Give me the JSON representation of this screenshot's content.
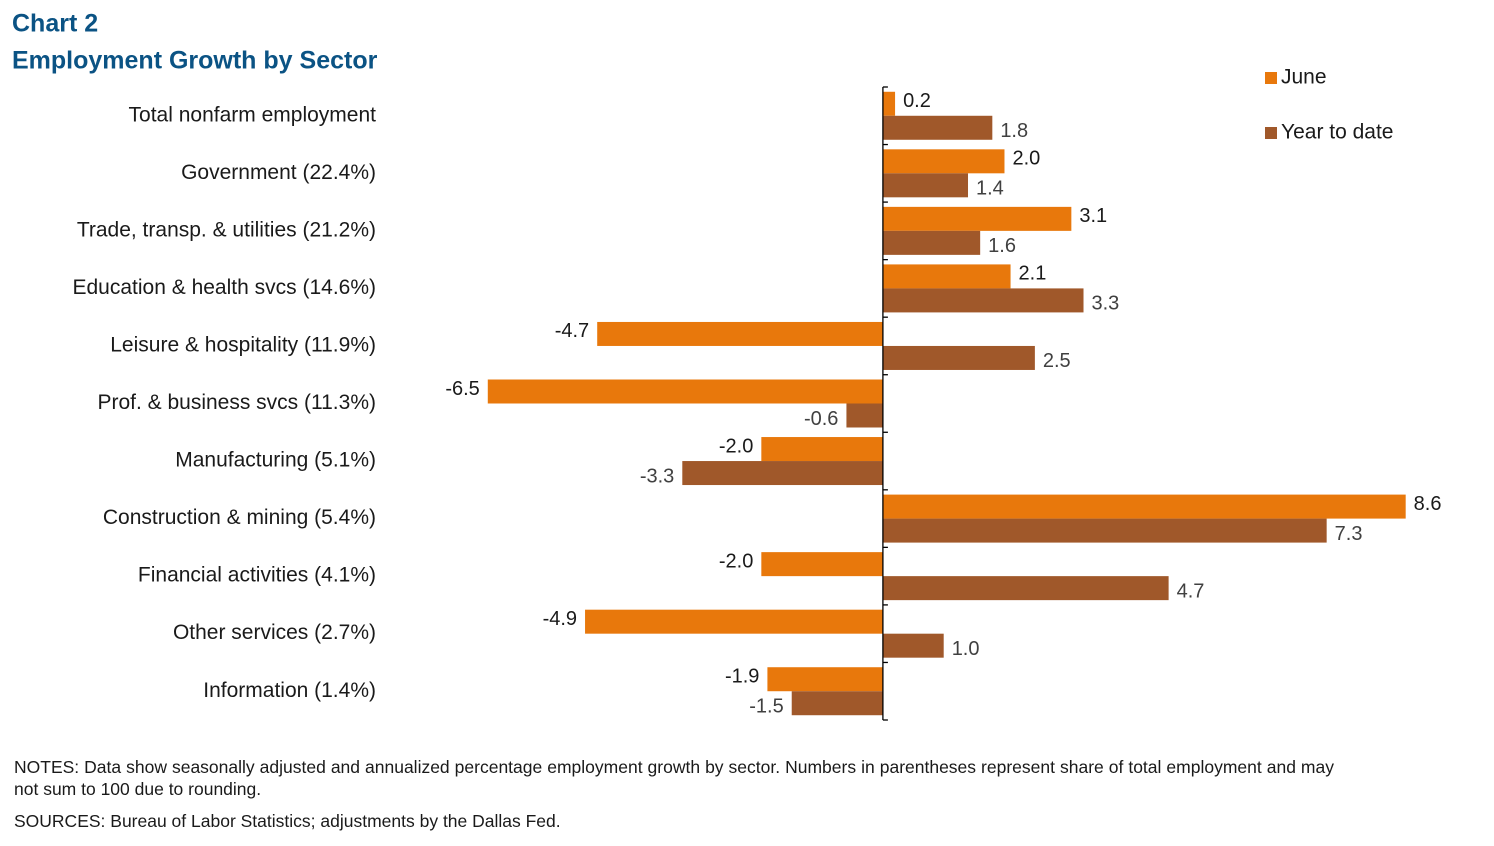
{
  "chart_data": {
    "type": "hbar",
    "title": "Chart 2",
    "subtitle": "Employment Growth by Sector",
    "categories": [
      "Total nonfarm employment",
      "Government (22.4%)",
      "Trade, transp. & utilities (21.2%)",
      "Education & health svcs (14.6%)",
      "Leisure & hospitality (11.9%)",
      "Prof. & business svcs (11.3%)",
      "Manufacturing (5.1%)",
      "Construction & mining (5.4%)",
      "Financial activities (4.1%)",
      "Other services (2.7%)",
      "Information (1.4%)"
    ],
    "series": [
      {
        "name": "June",
        "color": "#e8780c",
        "values": [
          0.2,
          2.0,
          3.1,
          2.1,
          -4.7,
          -6.5,
          -2.0,
          8.6,
          -2.0,
          -4.9,
          -1.9
        ],
        "value_labels": [
          "0.2",
          "2.0",
          "3.1",
          "2.1",
          "-4.7",
          "-6.5",
          "-2.0",
          "8.6",
          "-2.0",
          "-4.9",
          "-1.9"
        ]
      },
      {
        "name": "Year to date",
        "color": "#a0582a",
        "values": [
          1.8,
          1.4,
          1.6,
          3.3,
          2.5,
          -0.6,
          -3.3,
          7.3,
          4.7,
          1.0,
          -1.5
        ],
        "value_labels": [
          "1.8",
          "1.4",
          "1.6",
          "3.3",
          "2.5",
          "-0.6",
          "-3.3",
          "7.3",
          "4.7",
          "1.0",
          "-1.5"
        ]
      }
    ],
    "xlim": [
      -8,
      9
    ],
    "legend": "top-right",
    "notes": "NOTES: Data show seasonally adjusted and annualized percentage employment growth by sector. Numbers in parentheses represent share of total employment and may not sum to 100 due to rounding.",
    "sources": "SOURCES: Bureau of Labor Statistics; adjustments by the Dallas Fed."
  }
}
